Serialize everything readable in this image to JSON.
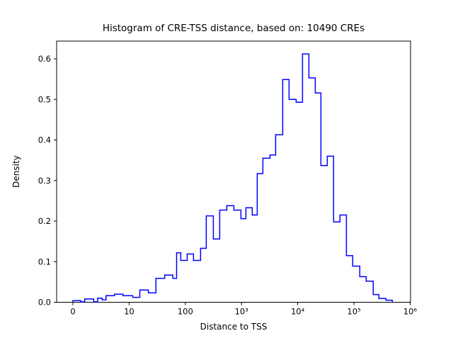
{
  "chart_data": {
    "type": "histogram",
    "element": "step",
    "title": "Histogram of CRE-TSS distance, based on: 10490 CREs",
    "sample_size": 10490,
    "xlabel": "Distance to TSS",
    "ylabel": "Density",
    "x_scale": "symlog",
    "x_linear_threshold": 10,
    "legend": "none",
    "grid": false,
    "line_color": "#0000ff",
    "axis_color": "#000000",
    "background_color": "#ffffff",
    "ylim": [
      0.0,
      0.644
    ],
    "xlim": [
      0,
      1000000
    ],
    "x_ticks": {
      "values": [
        0,
        10,
        100,
        1000,
        10000,
        100000,
        1000000
      ],
      "labels": [
        "0",
        "10",
        "100",
        "10³",
        "10⁴",
        "10⁵",
        "10⁶"
      ]
    },
    "y_ticks": {
      "values": [
        0.0,
        0.1,
        0.2,
        0.3,
        0.4,
        0.5,
        0.6
      ],
      "labels": [
        "0.0",
        "0.1",
        "0.2",
        "0.3",
        "0.4",
        "0.5",
        "0.6"
      ]
    },
    "bins": [
      [
        0,
        1.4,
        0.004
      ],
      [
        1.4,
        2.1,
        0.001
      ],
      [
        2.1,
        3.7,
        0.008
      ],
      [
        3.7,
        4.4,
        0.001
      ],
      [
        4.4,
        5.2,
        0.01
      ],
      [
        5.2,
        5.9,
        0.006
      ],
      [
        5.9,
        7.4,
        0.016
      ],
      [
        7.4,
        8.9,
        0.02
      ],
      [
        8.9,
        11.6,
        0.016
      ],
      [
        11.6,
        15.5,
        0.012
      ],
      [
        15.5,
        22,
        0.03
      ],
      [
        22,
        30,
        0.023
      ],
      [
        30,
        43,
        0.059
      ],
      [
        43,
        60,
        0.067
      ],
      [
        60,
        70,
        0.059
      ],
      [
        70,
        83,
        0.122
      ],
      [
        83,
        108,
        0.103
      ],
      [
        108,
        140,
        0.119
      ],
      [
        140,
        187,
        0.103
      ],
      [
        187,
        236,
        0.133
      ],
      [
        236,
        315,
        0.213
      ],
      [
        315,
        409,
        0.156
      ],
      [
        409,
        547,
        0.227
      ],
      [
        547,
        731,
        0.238
      ],
      [
        731,
        977,
        0.227
      ],
      [
        977,
        1196,
        0.206
      ],
      [
        1196,
        1553,
        0.233
      ],
      [
        1553,
        1902,
        0.215
      ],
      [
        1902,
        2400,
        0.317
      ],
      [
        2400,
        3206,
        0.355
      ],
      [
        3206,
        4045,
        0.363
      ],
      [
        4045,
        5408,
        0.413
      ],
      [
        5408,
        7015,
        0.549
      ],
      [
        7015,
        9377,
        0.5
      ],
      [
        9377,
        12170,
        0.493
      ],
      [
        12170,
        15815,
        0.612
      ],
      [
        15815,
        20512,
        0.553
      ],
      [
        20512,
        25880,
        0.516
      ],
      [
        25880,
        33573,
        0.337
      ],
      [
        33573,
        43550,
        0.36
      ],
      [
        43550,
        56494,
        0.198
      ],
      [
        56494,
        73452,
        0.215
      ],
      [
        73452,
        95280,
        0.115
      ],
      [
        95280,
        127350,
        0.089
      ],
      [
        127350,
        165237,
        0.063
      ],
      [
        165237,
        220800,
        0.052
      ],
      [
        220800,
        278612,
        0.019
      ],
      [
        278612,
        372392,
        0.009
      ],
      [
        372392,
        483059,
        0.005
      ]
    ]
  }
}
